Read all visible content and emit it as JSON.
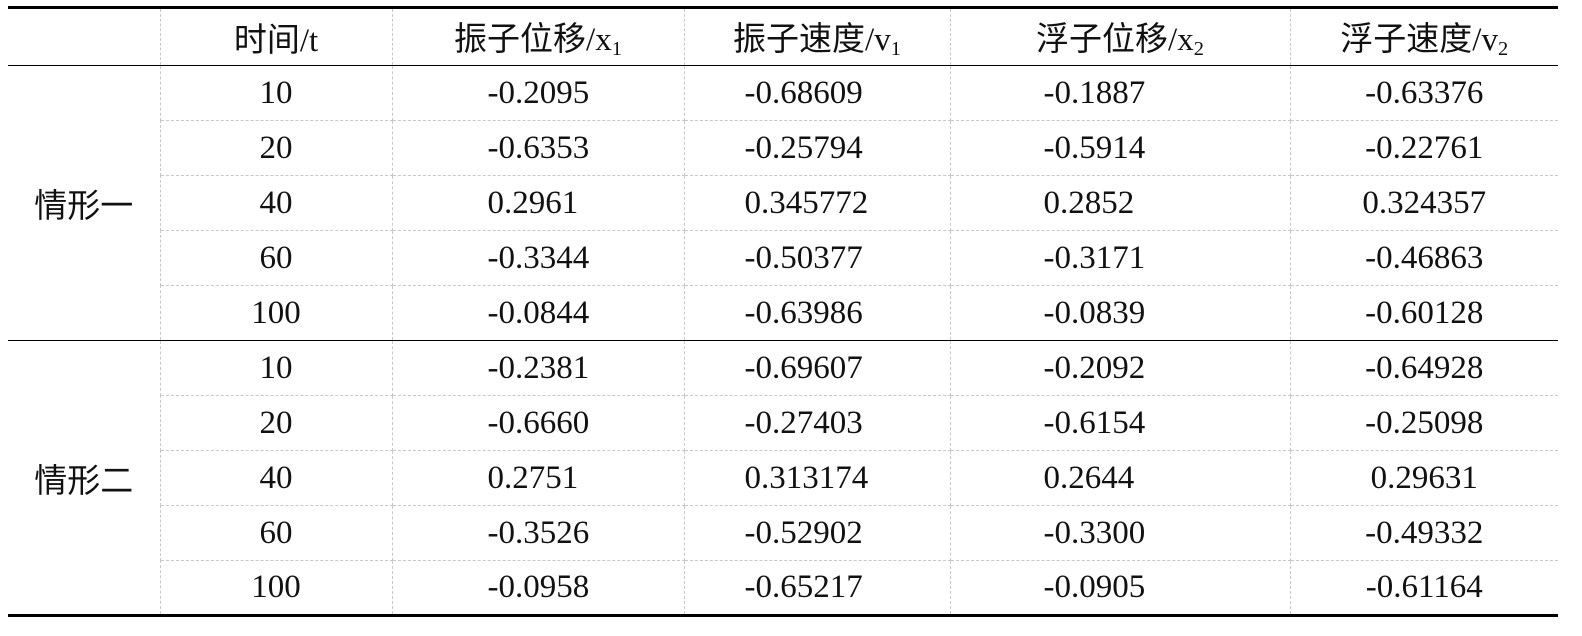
{
  "table": {
    "header": [
      {
        "text": "时间/t"
      },
      {
        "text": "振子位移/x",
        "sub": "1"
      },
      {
        "text": "振子速度/v",
        "sub": "1"
      },
      {
        "text": "浮子位移/x",
        "sub": "2"
      },
      {
        "text": "浮子速度/v",
        "sub": "2"
      }
    ],
    "groups": [
      {
        "label": "情形一",
        "rows": [
          [
            "10",
            "-0.2095",
            "-0.68609",
            "-0.1887",
            "-0.63376"
          ],
          [
            "20",
            "-0.6353",
            "-0.25794",
            "-0.5914",
            "-0.22761"
          ],
          [
            "40",
            "0.2961",
            "0.345772",
            "0.2852",
            "0.324357"
          ],
          [
            "60",
            "-0.3344",
            "-0.50377",
            "-0.3171",
            "-0.46863"
          ],
          [
            "100",
            "-0.0844",
            "-0.63986",
            "-0.0839",
            "-0.60128"
          ]
        ]
      },
      {
        "label": "情形二",
        "rows": [
          [
            "10",
            "-0.2381",
            "-0.69607",
            "-0.2092",
            "-0.64928"
          ],
          [
            "20",
            "-0.6660",
            "-0.27403",
            "-0.6154",
            "-0.25098"
          ],
          [
            "40",
            "0.2751",
            "0.313174",
            "0.2644",
            "0.29631"
          ],
          [
            "60",
            "-0.3526",
            "-0.52902",
            "-0.3300",
            "-0.49332"
          ],
          [
            "100",
            "-0.0958",
            "-0.65217",
            "-0.0905",
            "-0.61164"
          ]
        ]
      }
    ]
  }
}
